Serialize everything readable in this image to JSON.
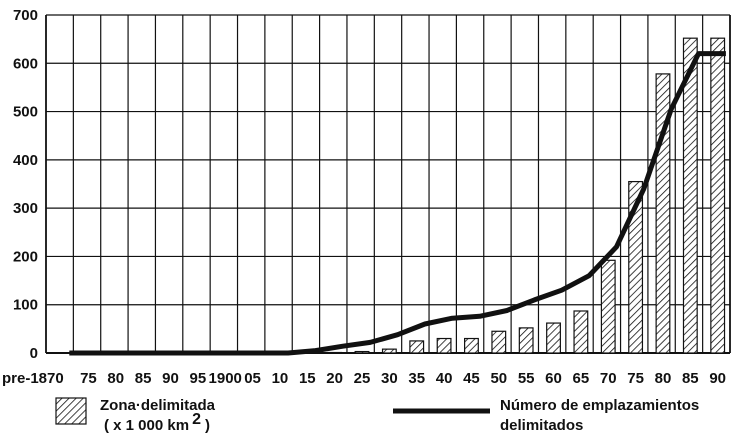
{
  "chart_data": {
    "type": "bar",
    "title": "",
    "xlabel": "",
    "ylabel": "",
    "ylim": [
      0,
      700
    ],
    "yticks": [
      "0",
      "100",
      "200",
      "300",
      "400",
      "500",
      "600",
      "700"
    ],
    "grid": true,
    "categories": [
      "pre-1870",
      "75",
      "80",
      "85",
      "90",
      "95",
      "1900",
      "05",
      "10",
      "15",
      "20",
      "25",
      "30",
      "35",
      "40",
      "45",
      "50",
      "55",
      "60",
      "65",
      "70",
      "75",
      "80",
      "85",
      "90"
    ],
    "series": [
      {
        "name": "Zona·delimitada",
        "name_line2": "( x 1 000 km",
        "unit_sup": "2",
        "name_close": ")",
        "type": "bar",
        "values": [
          0,
          0,
          0,
          0,
          0,
          0,
          0,
          0,
          0,
          0,
          1,
          3,
          8,
          25,
          30,
          30,
          45,
          52,
          62,
          87,
          192,
          355,
          578,
          652,
          652
        ]
      },
      {
        "name": "Número de emplazamientos",
        "name_line2": "delimitados",
        "type": "line",
        "values": [
          0,
          0,
          0,
          0,
          0,
          0,
          0,
          0,
          0,
          5,
          14,
          22,
          38,
          60,
          72,
          76,
          88,
          110,
          130,
          160,
          220,
          340,
          505,
          620,
          620
        ]
      }
    ],
    "legend_position": "bottom"
  }
}
